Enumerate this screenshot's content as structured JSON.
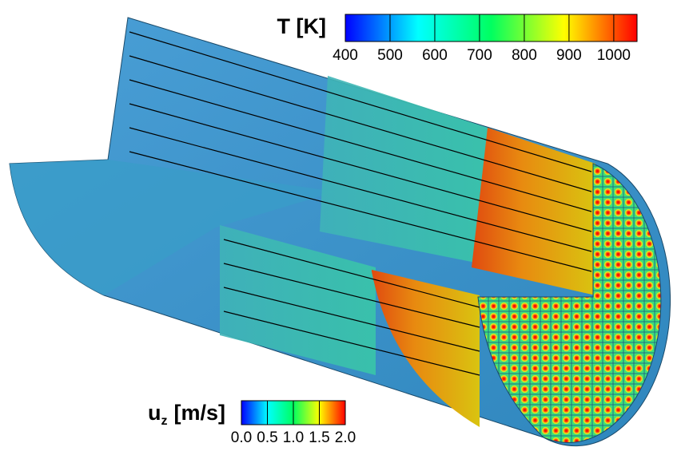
{
  "chart_data": [
    {
      "type": "colorbar",
      "title": "T [K]",
      "xlim": [
        400,
        1052
      ],
      "xticks": [
        400,
        500,
        600,
        700,
        800,
        900,
        1000
      ],
      "colors": [
        "#0000ff",
        "#00ffff",
        "#00ff60",
        "#ffff00",
        "#ff0000"
      ]
    },
    {
      "type": "colorbar",
      "title": "u",
      "title_subscript": "z",
      "title_suffix": "[m/s]",
      "xlim": [
        0,
        2
      ],
      "xticks": [
        {
          "value": 0,
          "label": "0.0"
        },
        {
          "value": 0.5,
          "label": "0.5"
        },
        {
          "value": 1,
          "label": "1.0"
        },
        {
          "value": 1.5,
          "label": "1.5"
        },
        {
          "value": 2,
          "label": "2.0"
        }
      ],
      "colors": [
        "#0000ff",
        "#00ffff",
        "#00ff60",
        "#ffff00",
        "#ff0000"
      ]
    }
  ]
}
